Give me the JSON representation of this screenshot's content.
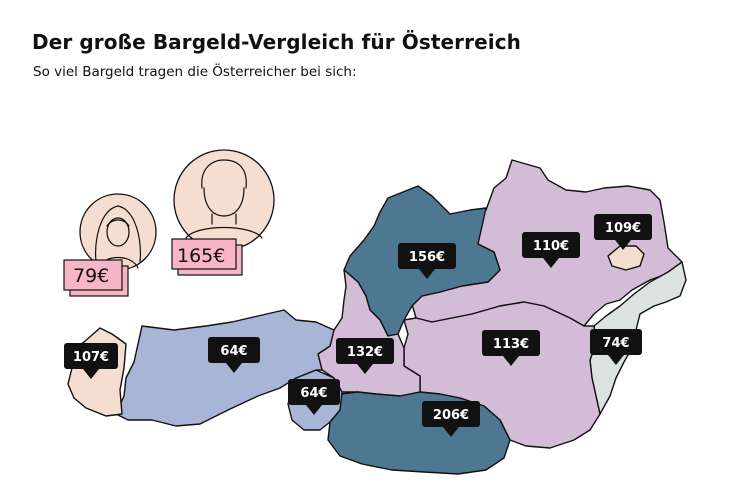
{
  "header": {
    "title": "Der große Bargeld-Vergleich für Österreich",
    "subtitle": "So viel Bargeld tragen die Österreicher bei sich:"
  },
  "gender": {
    "female": {
      "amount": "79€"
    },
    "male": {
      "amount": "165€"
    }
  },
  "colors": {
    "dark_teal": "#4e7891",
    "lavender": "#d3bcd6",
    "periwinkle": "#a7b5d6",
    "peach": "#f5ddd0",
    "sage": "#dbe2df",
    "pink_bill": "#f7b5c6",
    "label_bg": "#111111"
  },
  "regions": [
    {
      "name": "Vorarlberg",
      "amount": "107€"
    },
    {
      "name": "Tirol",
      "amount": "64€"
    },
    {
      "name": "Osttirol",
      "amount": "64€"
    },
    {
      "name": "Salzburg",
      "amount": "132€"
    },
    {
      "name": "Oberösterreich",
      "amount": "156€"
    },
    {
      "name": "Kärnten",
      "amount": "206€"
    },
    {
      "name": "Steiermark",
      "amount": "113€"
    },
    {
      "name": "Niederösterreich",
      "amount": "110€"
    },
    {
      "name": "Wien",
      "amount": "109€"
    },
    {
      "name": "Burgenland",
      "amount": "74€"
    }
  ]
}
